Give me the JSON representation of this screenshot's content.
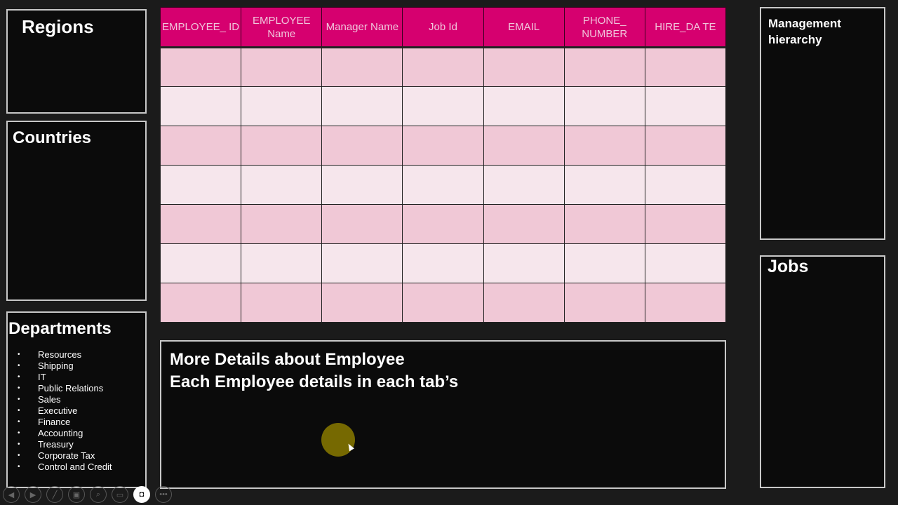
{
  "panels": {
    "regions": "Regions",
    "countries": "Countries",
    "departments": {
      "title": "Departments",
      "items": [
        "Resources",
        "Shipping",
        "IT",
        "Public Relations",
        "Sales",
        "Executive",
        "Finance",
        "Accounting",
        "Treasury",
        "Corporate Tax",
        "Control and Credit"
      ]
    },
    "management": "Management hierarchy",
    "jobs": "Jobs",
    "details": {
      "line1": "More Details about Employee",
      "line2": "Each Employee details in each tab’s"
    }
  },
  "table": {
    "headers": [
      "EMPLOYEE_ ID",
      "EMPLOYEE Name",
      "Manager Name",
      "Job Id",
      "EMAIL",
      "PHONE_ NUMBER",
      "HIRE_DA TE"
    ],
    "empty_rows": 7
  },
  "colors": {
    "header": "#d6006f",
    "row_odd": "#f0c8d6",
    "row_even": "#f6e6ec"
  },
  "toolbar": [
    "previous-icon",
    "next-icon",
    "pen-icon",
    "slides-icon",
    "zoom-icon",
    "subtitles-icon",
    "camera-icon",
    "more-icon"
  ]
}
